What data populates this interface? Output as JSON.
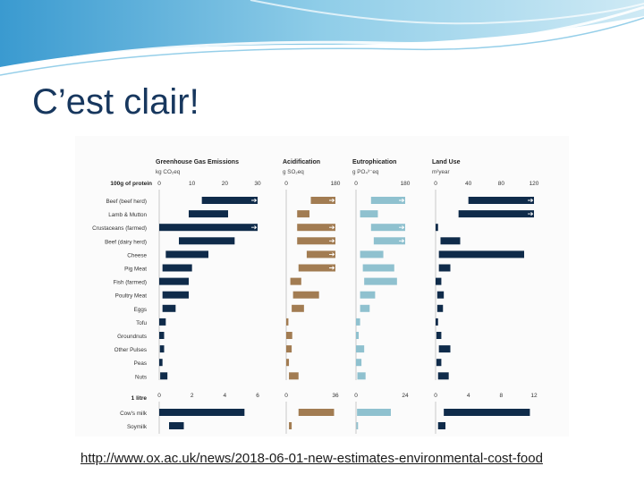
{
  "slide": {
    "title": "C’est clair!",
    "link": "http://www.ox.ac.uk/news/2018-06-01-new-estimates-environmental-cost-food"
  },
  "colors": {
    "title": "#17375e",
    "ghg": "#0f2b4a",
    "acid": "#a27c52",
    "eutro": "#8fc1cf",
    "land": "#0f2b4a",
    "banner": "#4aa8d8"
  },
  "chart_data": {
    "type": "bar",
    "section_labels": [
      "100g of protein",
      "1 litre"
    ],
    "categories": [
      "Beef (beef herd)",
      "Lamb & Mutton",
      "Crustaceans (farmed)",
      "Beef (dairy herd)",
      "Cheese",
      "Pig Meat",
      "Fish (farmed)",
      "Poultry Meat",
      "Eggs",
      "Tofu",
      "Groundnuts",
      "Other Pulses",
      "Peas",
      "Nuts"
    ],
    "milk_categories": [
      "Cow's milk",
      "Soymilk"
    ],
    "panels": [
      {
        "title": "Greenhouse Gas Emissions",
        "unit": "kg CO₂eq",
        "ticks": [
          "0",
          "10",
          "20",
          "30"
        ],
        "xlim": [
          0,
          30
        ],
        "milk_ticks": [
          "0",
          "2",
          "4",
          "6"
        ],
        "milk_xlim": [
          0,
          6
        ],
        "values": [
          [
            13,
            30
          ],
          [
            9,
            21
          ],
          [
            0,
            30
          ],
          [
            6,
            23
          ],
          [
            2,
            15
          ],
          [
            1,
            10
          ],
          [
            0,
            9
          ],
          [
            1,
            9
          ],
          [
            1,
            5
          ],
          [
            0,
            2
          ],
          [
            0,
            1.5
          ],
          [
            0.2,
            1.5
          ],
          [
            0,
            1
          ],
          [
            0.3,
            2.5
          ]
        ],
        "overflow": [
          true,
          false,
          true,
          false,
          false,
          false,
          false,
          false,
          false,
          false,
          false,
          false,
          false,
          false
        ],
        "milk_values": [
          [
            0,
            5.2
          ],
          [
            0.6,
            1.5
          ]
        ]
      },
      {
        "title": "Acidification",
        "unit": "g SO₂eq",
        "ticks": [
          "0",
          "180"
        ],
        "xlim": [
          0,
          180
        ],
        "milk_ticks": [
          "0",
          "36"
        ],
        "milk_xlim": [
          0,
          36
        ],
        "values": [
          [
            90,
            180
          ],
          [
            40,
            85
          ],
          [
            40,
            180
          ],
          [
            40,
            180
          ],
          [
            75,
            180
          ],
          [
            45,
            180
          ],
          [
            15,
            55
          ],
          [
            25,
            120
          ],
          [
            20,
            65
          ],
          [
            0,
            8
          ],
          [
            0,
            22
          ],
          [
            0,
            20
          ],
          [
            0,
            10
          ],
          [
            10,
            45
          ]
        ],
        "overflow": [
          true,
          false,
          true,
          true,
          true,
          true,
          false,
          false,
          false,
          false,
          false,
          false,
          false,
          false
        ],
        "milk_values": [
          [
            9,
            35
          ],
          [
            2,
            4
          ]
        ]
      },
      {
        "title": "Eutrophication",
        "unit": "g PO₄³⁻eq",
        "ticks": [
          "0",
          "180"
        ],
        "xlim": [
          0,
          180
        ],
        "milk_ticks": [
          "0",
          "24"
        ],
        "milk_xlim": [
          0,
          24
        ],
        "values": [
          [
            55,
            180
          ],
          [
            15,
            80
          ],
          [
            55,
            180
          ],
          [
            65,
            180
          ],
          [
            15,
            100
          ],
          [
            25,
            140
          ],
          [
            30,
            150
          ],
          [
            15,
            70
          ],
          [
            15,
            50
          ],
          [
            0,
            15
          ],
          [
            0,
            10
          ],
          [
            0,
            30
          ],
          [
            0,
            20
          ],
          [
            5,
            35
          ]
        ],
        "overflow": [
          true,
          false,
          true,
          true,
          false,
          false,
          false,
          false,
          false,
          false,
          false,
          false,
          false,
          false
        ],
        "milk_values": [
          [
            0.5,
            17
          ],
          [
            0.2,
            1
          ]
        ]
      },
      {
        "title": "Land Use",
        "unit": "m²year",
        "ticks": [
          "0",
          "40",
          "80",
          "120"
        ],
        "xlim": [
          0,
          120
        ],
        "milk_ticks": [
          "0",
          "4",
          "8",
          "12"
        ],
        "milk_xlim": [
          0,
          12
        ],
        "values": [
          [
            40,
            120
          ],
          [
            28,
            120
          ],
          [
            0,
            3
          ],
          [
            6,
            30
          ],
          [
            4,
            108
          ],
          [
            4,
            18
          ],
          [
            0,
            7
          ],
          [
            2,
            10
          ],
          [
            2,
            9
          ],
          [
            0,
            3
          ],
          [
            1,
            7
          ],
          [
            4,
            18
          ],
          [
            1,
            7
          ],
          [
            3,
            16
          ]
        ],
        "overflow": [
          true,
          true,
          false,
          false,
          false,
          false,
          false,
          false,
          false,
          false,
          false,
          false,
          false,
          false
        ],
        "milk_values": [
          [
            1,
            11.5
          ],
          [
            0.3,
            1.2
          ]
        ]
      }
    ]
  }
}
